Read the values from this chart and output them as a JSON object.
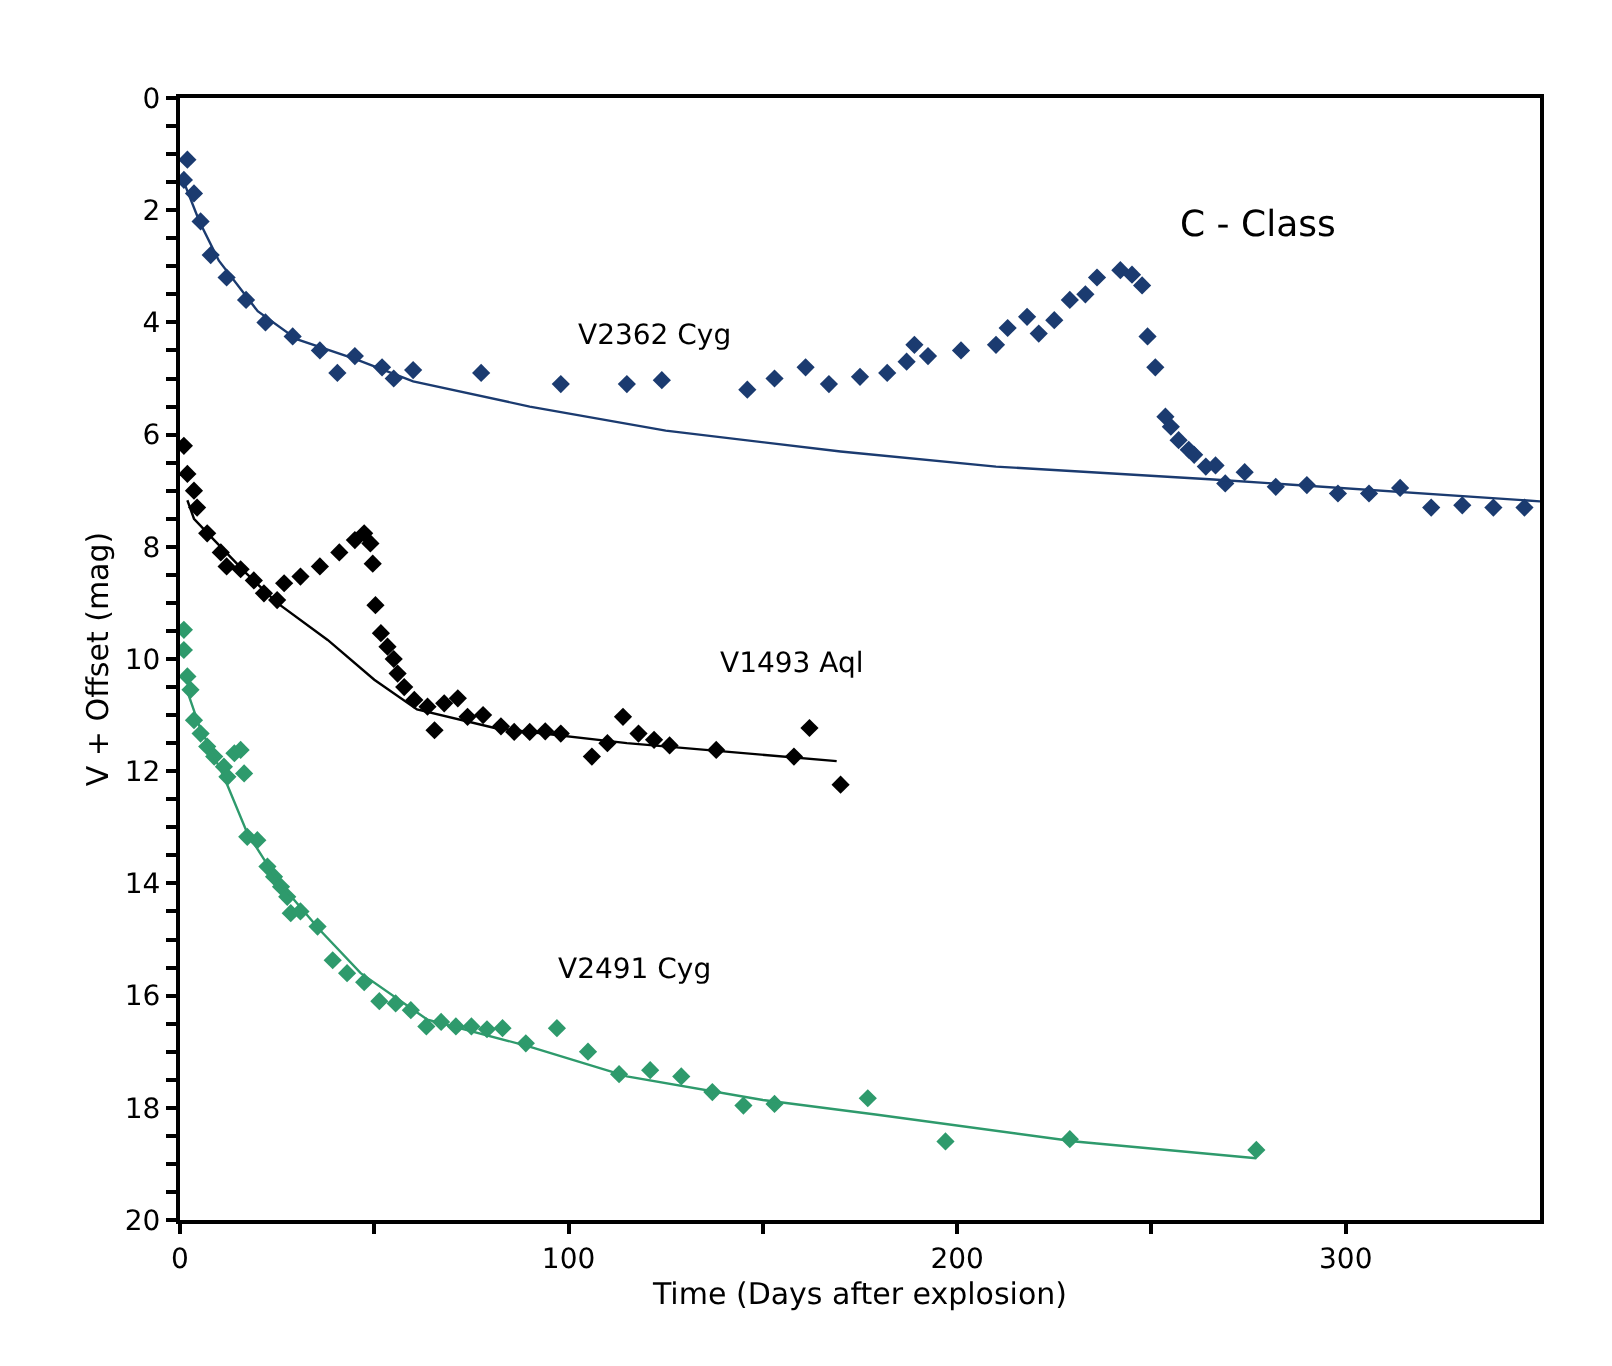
{
  "chart_data": {
    "type": "scatter",
    "xlabel": "Time (Days after explosion)",
    "ylabel": "V + Offset (mag)",
    "annotations": [
      "C - Class"
    ],
    "xlim": [
      0,
      350
    ],
    "xticks": [
      0,
      {
        "value": 50,
        "label": null
      },
      100,
      {
        "value": 150,
        "label": null
      },
      200,
      {
        "value": 250,
        "label": null
      },
      300
    ],
    "ylim": [
      20,
      0
    ],
    "yticks": [
      0,
      {
        "value": 0.5,
        "label": null
      },
      {
        "value": 1,
        "label": null
      },
      {
        "value": 1.5,
        "label": null
      },
      2,
      {
        "value": 2.5,
        "label": null
      },
      {
        "value": 3,
        "label": null
      },
      {
        "value": 3.5,
        "label": null
      },
      4,
      {
        "value": 4.5,
        "label": null
      },
      {
        "value": 5,
        "label": null
      },
      {
        "value": 5.5,
        "label": null
      },
      6,
      {
        "value": 6.5,
        "label": null
      },
      {
        "value": 7,
        "label": null
      },
      {
        "value": 7.5,
        "label": null
      },
      8,
      {
        "value": 8.5,
        "label": null
      },
      {
        "value": 9,
        "label": null
      },
      {
        "value": 9.5,
        "label": null
      },
      10,
      {
        "value": 10.5,
        "label": null
      },
      {
        "value": 11,
        "label": null
      },
      {
        "value": 11.5,
        "label": null
      },
      12,
      {
        "value": 12.5,
        "label": null
      },
      {
        "value": 13,
        "label": null
      },
      {
        "value": 13.5,
        "label": null
      },
      14,
      {
        "value": 14.5,
        "label": null
      },
      {
        "value": 15,
        "label": null
      },
      {
        "value": 15.5,
        "label": null
      },
      16,
      {
        "value": 16.5,
        "label": null
      },
      {
        "value": 17,
        "label": null
      },
      {
        "value": 17.5,
        "label": null
      },
      18,
      {
        "value": 18.5,
        "label": null
      },
      {
        "value": 19,
        "label": null
      },
      {
        "value": 19.5,
        "label": null
      },
      20
    ],
    "marker": "diamond",
    "series": [
      {
        "name": "V2362 Cyg",
        "color": "#1b3b70",
        "x": [
          1,
          1.9,
          3.6,
          5.3,
          7.9,
          12,
          17,
          22,
          29,
          36,
          40.5,
          45,
          52,
          55,
          60,
          77.5,
          98,
          115,
          124,
          146,
          153,
          161,
          167,
          175,
          182,
          187,
          189,
          192.5,
          201,
          210,
          213,
          218,
          221,
          225,
          229,
          233,
          236,
          242,
          245,
          247.6,
          249,
          251,
          253.6,
          255,
          257,
          259.6,
          261,
          264,
          266.5,
          269,
          274,
          282,
          290,
          298,
          306,
          314,
          322,
          330,
          338,
          346
        ],
        "values": [
          1.46,
          1.1,
          1.7,
          2.2,
          2.8,
          3.2,
          3.6,
          4.0,
          4.25,
          4.5,
          4.9,
          4.6,
          4.8,
          5.0,
          4.85,
          4.9,
          5.1,
          5.1,
          5.03,
          5.2,
          5.0,
          4.8,
          5.1,
          4.97,
          4.9,
          4.7,
          4.4,
          4.6,
          4.5,
          4.4,
          4.1,
          3.9,
          4.2,
          3.96,
          3.6,
          3.5,
          3.2,
          3.07,
          3.15,
          3.34,
          4.25,
          4.8,
          5.68,
          5.86,
          6.1,
          6.27,
          6.36,
          6.57,
          6.55,
          6.87,
          6.67,
          6.93,
          6.9,
          7.05,
          7.05,
          6.95,
          7.3,
          7.26,
          7.3,
          7.3
        ]
      },
      {
        "type": "line",
        "marker": "none",
        "color": "#1b3b70",
        "x": [
          1,
          5,
          10,
          20,
          30,
          45,
          60,
          90,
          125,
          170,
          210,
          266,
          350
        ],
        "values": [
          1.5,
          2.2,
          2.9,
          3.8,
          4.3,
          4.65,
          5.05,
          5.5,
          5.93,
          6.3,
          6.57,
          6.8,
          7.19
        ]
      },
      {
        "name": "V1493 Aql",
        "color": "#000000",
        "x": [
          1,
          1.9,
          3.6,
          4.4,
          7,
          10.5,
          12,
          15.6,
          19,
          21.6,
          25,
          26.8,
          31,
          36,
          41,
          45,
          47.4,
          49,
          49.6,
          50.3,
          51.7,
          53.4,
          55,
          56,
          57.7,
          60.3,
          63.7,
          65.5,
          68,
          71.5,
          74,
          78,
          82.6,
          86,
          90,
          94,
          98,
          106,
          110,
          114,
          118,
          122,
          126,
          138,
          158,
          162,
          170
        ],
        "values": [
          6.2,
          6.7,
          7.0,
          7.3,
          7.76,
          8.1,
          8.35,
          8.4,
          8.6,
          8.83,
          8.95,
          8.65,
          8.53,
          8.35,
          8.1,
          7.88,
          7.76,
          7.94,
          8.3,
          9.04,
          9.54,
          9.78,
          10.0,
          10.26,
          10.5,
          10.73,
          10.85,
          11.27,
          10.79,
          10.7,
          11.03,
          11.0,
          11.2,
          11.3,
          11.3,
          11.29,
          11.33,
          11.74,
          11.5,
          11.03,
          11.33,
          11.44,
          11.54,
          11.62,
          11.74,
          11.23,
          12.24
        ]
      },
      {
        "type": "line",
        "marker": "none",
        "color": "#000000",
        "x": [
          1.9,
          3.6,
          8.8,
          17,
          25,
          38,
          50,
          61,
          81,
          115,
          169
        ],
        "values": [
          7.17,
          7.5,
          7.88,
          8.47,
          9.0,
          9.66,
          10.37,
          10.9,
          11.23,
          11.5,
          11.82
        ]
      },
      {
        "name": "V2491 Cyg",
        "color": "#2e9a6c",
        "x": [
          1,
          1,
          1.9,
          2.7,
          3.6,
          5.3,
          7,
          8.8,
          11.3,
          12.2,
          14,
          15.6,
          16.5,
          17.3,
          19.9,
          22.5,
          24.2,
          26,
          27.6,
          28.5,
          31,
          35.4,
          39.3,
          43,
          47.4,
          51.3,
          55.5,
          59.4,
          63.4,
          67.2,
          71,
          75,
          79,
          83,
          89,
          97,
          105,
          113,
          121,
          129,
          137,
          145,
          153,
          177,
          197,
          229,
          277
        ],
        "values": [
          9.48,
          9.84,
          10.31,
          10.55,
          11.09,
          11.33,
          11.56,
          11.74,
          11.92,
          12.1,
          11.68,
          11.62,
          12.04,
          13.17,
          13.23,
          13.7,
          13.88,
          14.06,
          14.24,
          14.53,
          14.5,
          14.77,
          15.37,
          15.6,
          15.76,
          16.1,
          16.14,
          16.26,
          16.55,
          16.47,
          16.55,
          16.55,
          16.6,
          16.58,
          16.85,
          16.58,
          17.0,
          17.4,
          17.33,
          17.44,
          17.72,
          17.96,
          17.93,
          17.83,
          18.6,
          18.56,
          18.75
        ]
      },
      {
        "type": "line",
        "marker": "none",
        "color": "#2e9a6c",
        "x": [
          2,
          5,
          11.3,
          17.3,
          25,
          36,
          46.5,
          63.7,
          89.5,
          115,
          150,
          179,
          230.4,
          277
        ],
        "values": [
          10.6,
          11.2,
          12.1,
          13.1,
          13.94,
          14.83,
          15.6,
          16.43,
          16.9,
          17.44,
          17.86,
          18.12,
          18.6,
          18.9
        ]
      }
    ]
  }
}
